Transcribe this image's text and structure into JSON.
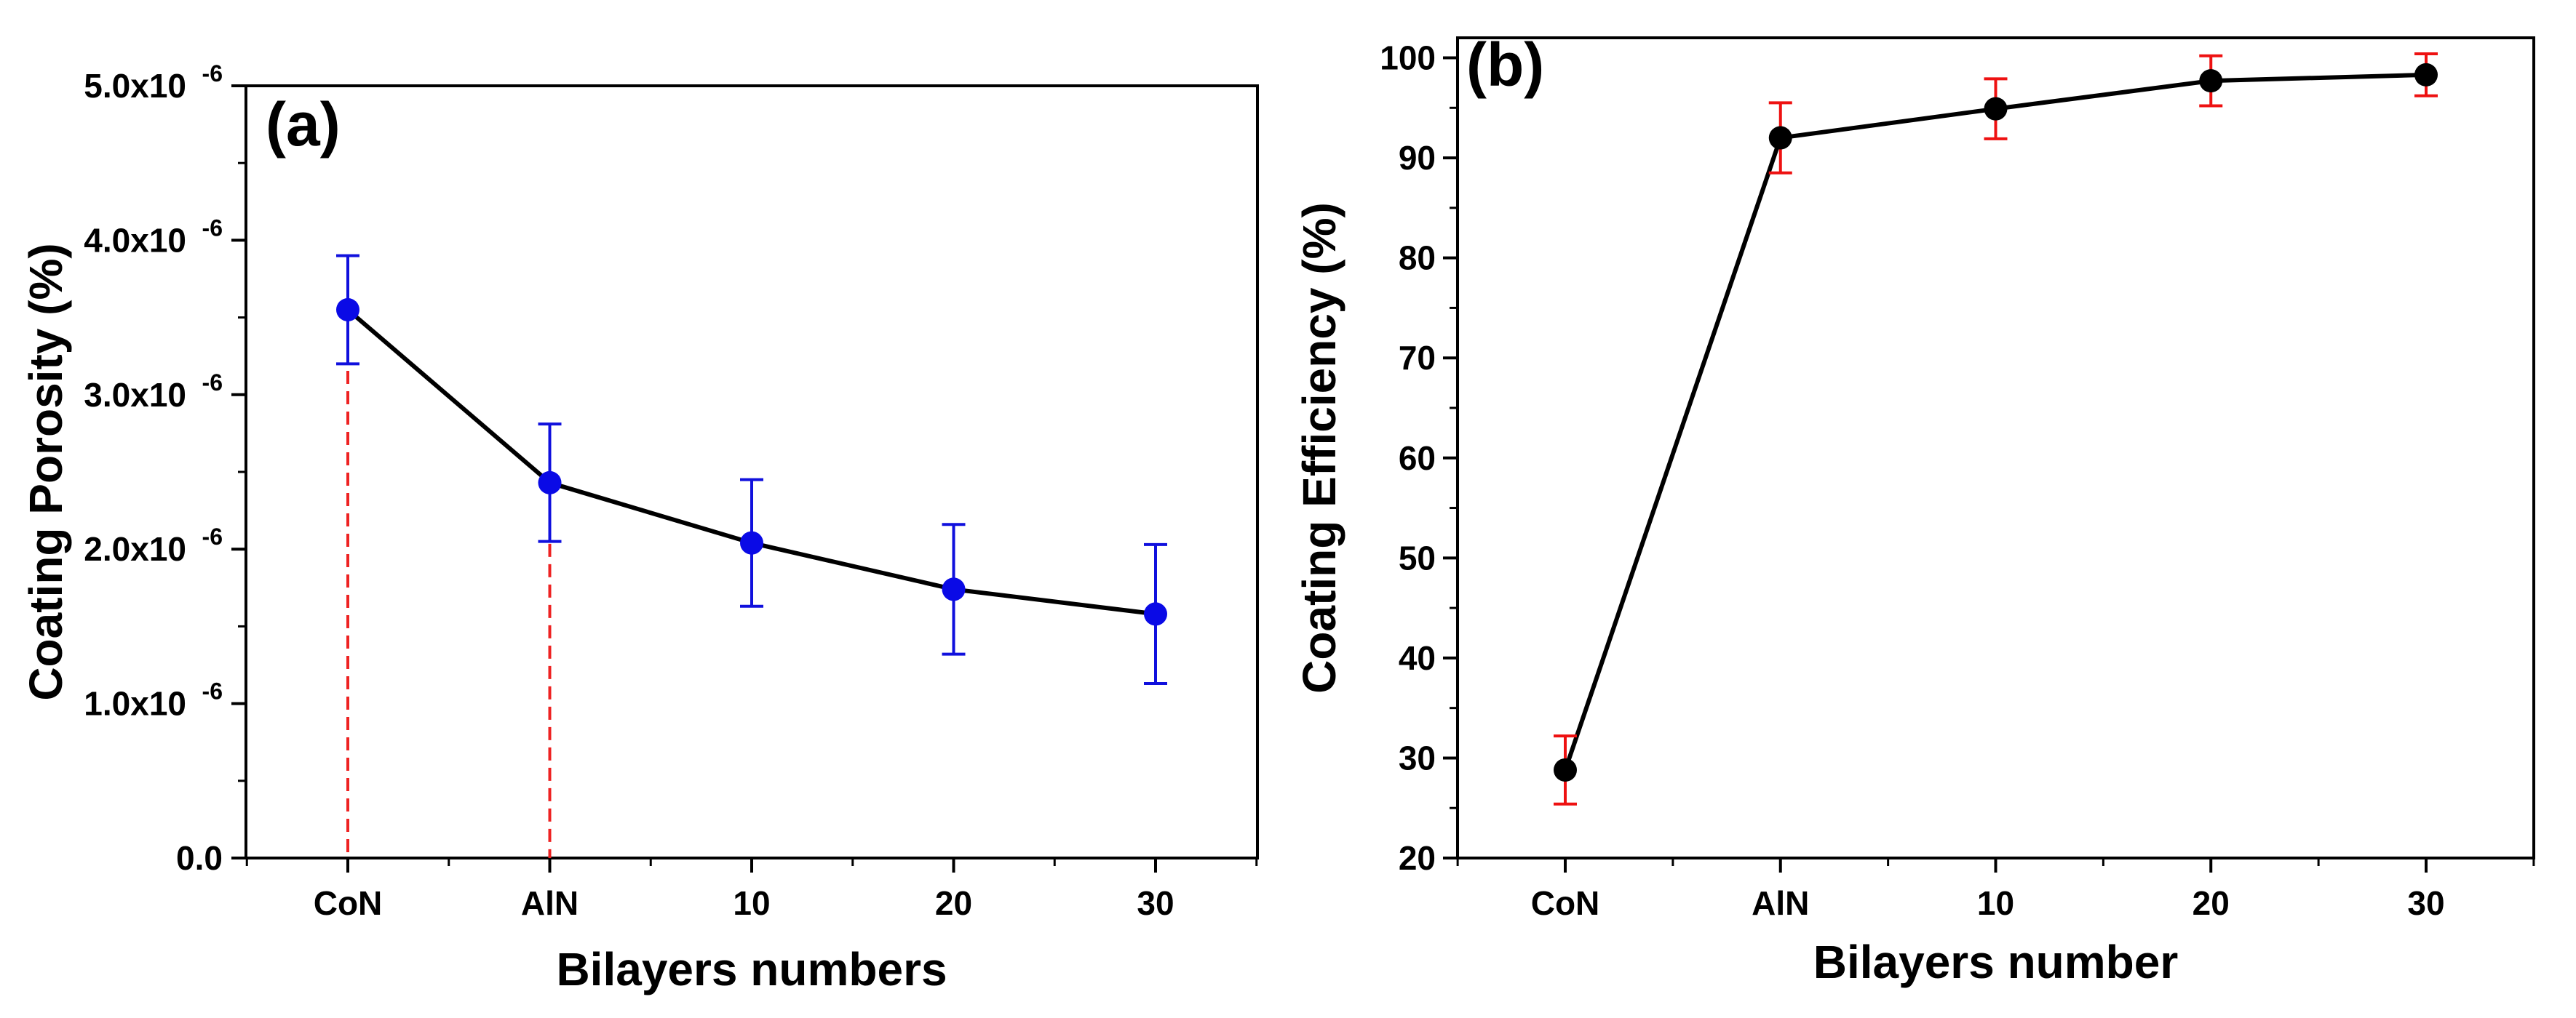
{
  "chart_data": [
    {
      "type": "line",
      "panel_label": "(a)",
      "xlabel": "Bilayers numbers",
      "ylabel": "Coating Porosity (%)",
      "categories": [
        "CoN",
        "AlN",
        "10",
        "20",
        "30"
      ],
      "ylim": [
        0,
        5e-06
      ],
      "ytick_base_labels": [
        "0.0",
        "1.0x10",
        "2.0x10",
        "3.0x10",
        "4.0x10",
        "5.0x10"
      ],
      "ytick_exponent": "-6",
      "series": [
        {
          "values": [
            3.55e-06,
            2.43e-06,
            2.04e-06,
            1.74e-06,
            1.58e-06
          ],
          "error": [
            3.5e-07,
            3.8e-07,
            4.1e-07,
            4.2e-07,
            4.5e-07
          ],
          "marker_color": "#0a0ae6",
          "errorbar_color": "#1010dd",
          "line_color": "#000000"
        }
      ],
      "reference_lines": {
        "categories": [
          "CoN",
          "AlN"
        ],
        "color": "#ee2222",
        "style": "dashed"
      },
      "grid": false,
      "legend": "none"
    },
    {
      "type": "line",
      "panel_label": "(b)",
      "xlabel": "Bilayers number",
      "ylabel": "Coating Efficiency  (%)",
      "categories": [
        "CoN",
        "AlN",
        "10",
        "20",
        "30"
      ],
      "ylim": [
        20,
        102
      ],
      "ytick_labels": [
        "20",
        "30",
        "40",
        "50",
        "60",
        "70",
        "80",
        "90",
        "100"
      ],
      "series": [
        {
          "values": [
            28.8,
            92.0,
            94.9,
            97.7,
            98.3
          ],
          "error": [
            3.4,
            3.5,
            3.0,
            2.5,
            2.1
          ],
          "marker_color": "#000000",
          "errorbar_color": "#ee1111",
          "line_color": "#000000"
        }
      ],
      "grid": false,
      "legend": "none"
    }
  ]
}
